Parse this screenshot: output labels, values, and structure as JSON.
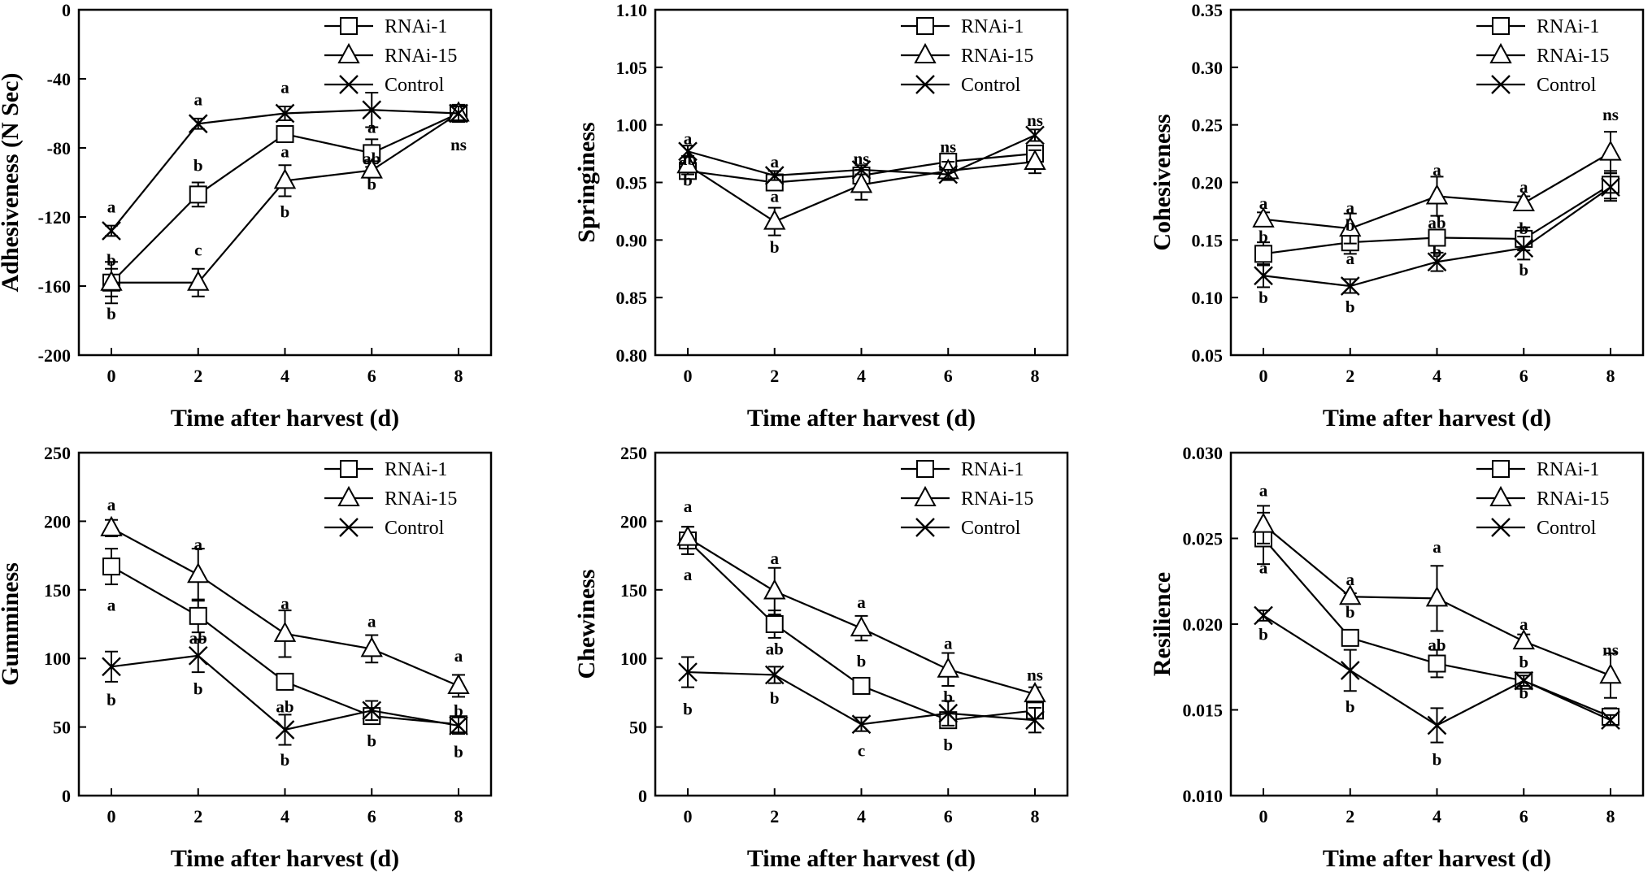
{
  "chart_data": [
    {
      "type": "line",
      "ylabel": "Adhesiveness (N Sec)",
      "xlabel": "Time after harvest (d)",
      "x": [
        0,
        2,
        4,
        6,
        8
      ],
      "ylim": [
        -200,
        0
      ],
      "yticks": [
        -200,
        -160,
        -120,
        -80,
        -40,
        0
      ],
      "ytick_labels": [
        "-200",
        "-160",
        "-120",
        "-80",
        "-40",
        "0"
      ],
      "legend": "top-right",
      "series": [
        {
          "name": "RNAi-1",
          "marker": "square",
          "values": [
            -158,
            -107,
            -72,
            -83,
            -60
          ],
          "errors": [
            12,
            7,
            4,
            8,
            5
          ]
        },
        {
          "name": "RNAi-15",
          "marker": "triangle",
          "values": [
            -158,
            -158,
            -99,
            -93,
            -60
          ],
          "errors": [
            8,
            8,
            9,
            4,
            4
          ]
        },
        {
          "name": "Control",
          "marker": "x",
          "values": [
            -128,
            -66,
            -60,
            -58,
            -60
          ],
          "errors": [
            3,
            3,
            4,
            10,
            4
          ]
        }
      ],
      "annotations": [
        {
          "x": 0,
          "y": -114,
          "text": "a"
        },
        {
          "x": 0,
          "y": -145,
          "text": "b"
        },
        {
          "x": 0,
          "y": -176,
          "text": "b"
        },
        {
          "x": 2,
          "y": -52,
          "text": "a"
        },
        {
          "x": 2,
          "y": -90,
          "text": "b"
        },
        {
          "x": 2,
          "y": -139,
          "text": "c"
        },
        {
          "x": 4,
          "y": -45,
          "text": "a"
        },
        {
          "x": 4,
          "y": -82,
          "text": "a"
        },
        {
          "x": 4,
          "y": -117,
          "text": "b"
        },
        {
          "x": 6,
          "y": -68,
          "text": "a"
        },
        {
          "x": 6,
          "y": -86,
          "text": "ab"
        },
        {
          "x": 6,
          "y": -101,
          "text": "b"
        },
        {
          "x": 8,
          "y": -78,
          "text": "ns"
        }
      ]
    },
    {
      "type": "line",
      "ylabel": "Springiness",
      "xlabel": "Time after harvest (d)",
      "x": [
        0,
        2,
        4,
        6,
        8
      ],
      "ylim": [
        0.8,
        1.1
      ],
      "yticks": [
        0.8,
        0.85,
        0.9,
        0.95,
        1.0,
        1.05,
        1.1
      ],
      "ytick_labels": [
        "0.80",
        "0.85",
        "0.90",
        "0.95",
        "1.00",
        "1.05",
        "1.10"
      ],
      "legend": "top-right",
      "series": [
        {
          "name": "RNAi-1",
          "marker": "square",
          "values": [
            0.96,
            0.95,
            0.956,
            0.968,
            0.975
          ],
          "errors": [
            0.004,
            0.005,
            0.005,
            0.006,
            0.007
          ]
        },
        {
          "name": "RNAi-15",
          "marker": "triangle",
          "values": [
            0.965,
            0.916,
            0.948,
            0.96,
            0.968
          ],
          "errors": [
            0.008,
            0.012,
            0.013,
            0.008,
            0.01
          ]
        },
        {
          "name": "Control",
          "marker": "x",
          "values": [
            0.977,
            0.956,
            0.961,
            0.957,
            0.991
          ],
          "errors": [
            0.005,
            0.004,
            0.004,
            0.004,
            0.005
          ]
        }
      ],
      "annotations": [
        {
          "x": 0,
          "y": 0.988,
          "text": "a"
        },
        {
          "x": 0,
          "y": 0.97,
          "text": "ab"
        },
        {
          "x": 0,
          "y": 0.952,
          "text": "b"
        },
        {
          "x": 2,
          "y": 0.968,
          "text": "a"
        },
        {
          "x": 2,
          "y": 0.938,
          "text": "a"
        },
        {
          "x": 2,
          "y": 0.894,
          "text": "b"
        },
        {
          "x": 4,
          "y": 0.971,
          "text": "ns"
        },
        {
          "x": 6,
          "y": 0.981,
          "text": "ns"
        },
        {
          "x": 8,
          "y": 1.004,
          "text": "ns"
        }
      ]
    },
    {
      "type": "line",
      "ylabel": "Cohesiveness",
      "xlabel": "Time after harvest (d)",
      "x": [
        0,
        2,
        4,
        6,
        8
      ],
      "ylim": [
        0.05,
        0.35
      ],
      "yticks": [
        0.05,
        0.1,
        0.15,
        0.2,
        0.25,
        0.3,
        0.35
      ],
      "ytick_labels": [
        "0.05",
        "0.10",
        "0.15",
        "0.20",
        "0.25",
        "0.30",
        "0.35"
      ],
      "legend": "top-right",
      "series": [
        {
          "name": "RNAi-1",
          "marker": "square",
          "values": [
            0.138,
            0.148,
            0.152,
            0.151,
            0.198
          ],
          "errors": [
            0.01,
            0.01,
            0.006,
            0.01,
            0.012
          ]
        },
        {
          "name": "RNAi-15",
          "marker": "triangle",
          "values": [
            0.168,
            0.16,
            0.188,
            0.182,
            0.226
          ],
          "errors": [
            0.006,
            0.013,
            0.017,
            0.006,
            0.018
          ]
        },
        {
          "name": "Control",
          "marker": "x",
          "values": [
            0.119,
            0.11,
            0.131,
            0.143,
            0.196
          ],
          "errors": [
            0.01,
            0.006,
            0.008,
            0.01,
            0.012
          ]
        }
      ],
      "annotations": [
        {
          "x": 0,
          "y": 0.182,
          "text": "a"
        },
        {
          "x": 0,
          "y": 0.153,
          "text": "b"
        },
        {
          "x": 0,
          "y": 0.1,
          "text": "b"
        },
        {
          "x": 2,
          "y": 0.178,
          "text": "a"
        },
        {
          "x": 2,
          "y": 0.163,
          "text": "b"
        },
        {
          "x": 2,
          "y": 0.134,
          "text": "a"
        },
        {
          "x": 2,
          "y": 0.092,
          "text": "b"
        },
        {
          "x": 4,
          "y": 0.211,
          "text": "a"
        },
        {
          "x": 4,
          "y": 0.165,
          "text": "ab"
        },
        {
          "x": 4,
          "y": 0.14,
          "text": "b"
        },
        {
          "x": 6,
          "y": 0.196,
          "text": "a"
        },
        {
          "x": 6,
          "y": 0.16,
          "text": "b"
        },
        {
          "x": 6,
          "y": 0.124,
          "text": "b"
        },
        {
          "x": 8,
          "y": 0.259,
          "text": "ns"
        }
      ]
    },
    {
      "type": "line",
      "ylabel": "Gumminess",
      "xlabel": "Time after harvest (d)",
      "x": [
        0,
        2,
        4,
        6,
        8
      ],
      "ylim": [
        0,
        250
      ],
      "yticks": [
        0,
        50,
        100,
        150,
        200,
        250
      ],
      "ytick_labels": [
        "0",
        "50",
        "100",
        "150",
        "200",
        "250"
      ],
      "legend": "top-right",
      "series": [
        {
          "name": "RNAi-1",
          "marker": "square",
          "values": [
            167,
            131,
            83,
            58,
            52
          ],
          "errors": [
            13,
            12,
            4,
            5,
            4
          ]
        },
        {
          "name": "RNAi-15",
          "marker": "triangle",
          "values": [
            195,
            161,
            118,
            107,
            80
          ],
          "errors": [
            6,
            19,
            17,
            10,
            8
          ]
        },
        {
          "name": "Control",
          "marker": "x",
          "values": [
            94,
            102,
            48,
            62,
            51
          ],
          "errors": [
            11,
            12,
            11,
            7,
            6
          ]
        }
      ],
      "annotations": [
        {
          "x": 0,
          "y": 212,
          "text": "a"
        },
        {
          "x": 0,
          "y": 139,
          "text": "a"
        },
        {
          "x": 0,
          "y": 70,
          "text": "b"
        },
        {
          "x": 2,
          "y": 183,
          "text": "a"
        },
        {
          "x": 2,
          "y": 115,
          "text": "ab"
        },
        {
          "x": 2,
          "y": 78,
          "text": "b"
        },
        {
          "x": 4,
          "y": 140,
          "text": "a"
        },
        {
          "x": 4,
          "y": 65,
          "text": "ab"
        },
        {
          "x": 4,
          "y": 26,
          "text": "b"
        },
        {
          "x": 6,
          "y": 127,
          "text": "a"
        },
        {
          "x": 6,
          "y": 40,
          "text": "b"
        },
        {
          "x": 8,
          "y": 102,
          "text": "a"
        },
        {
          "x": 8,
          "y": 62,
          "text": "b"
        },
        {
          "x": 8,
          "y": 32,
          "text": "b"
        }
      ]
    },
    {
      "type": "line",
      "ylabel": "Chewiness",
      "xlabel": "Time after harvest (d)",
      "x": [
        0,
        2,
        4,
        6,
        8
      ],
      "ylim": [
        0,
        250
      ],
      "yticks": [
        0,
        50,
        100,
        150,
        200,
        250
      ],
      "ytick_labels": [
        "0",
        "50",
        "100",
        "150",
        "200",
        "250"
      ],
      "legend": "top-right",
      "series": [
        {
          "name": "RNAi-1",
          "marker": "square",
          "values": [
            186,
            125,
            80,
            55,
            62
          ],
          "errors": [
            10,
            10,
            5,
            5,
            5
          ]
        },
        {
          "name": "RNAi-15",
          "marker": "triangle",
          "values": [
            188,
            149,
            122,
            92,
            74
          ],
          "errors": [
            8,
            17,
            9,
            12,
            5
          ]
        },
        {
          "name": "Control",
          "marker": "x",
          "values": [
            90,
            88,
            52,
            60,
            55
          ],
          "errors": [
            11,
            6,
            5,
            9,
            9
          ]
        }
      ],
      "annotations": [
        {
          "x": 0,
          "y": 211,
          "text": "a"
        },
        {
          "x": 0,
          "y": 161,
          "text": "a"
        },
        {
          "x": 0,
          "y": 63,
          "text": "b"
        },
        {
          "x": 2,
          "y": 173,
          "text": "a"
        },
        {
          "x": 2,
          "y": 107,
          "text": "ab"
        },
        {
          "x": 2,
          "y": 71,
          "text": "b"
        },
        {
          "x": 4,
          "y": 141,
          "text": "a"
        },
        {
          "x": 4,
          "y": 98,
          "text": "b"
        },
        {
          "x": 4,
          "y": 33,
          "text": "c"
        },
        {
          "x": 6,
          "y": 111,
          "text": "a"
        },
        {
          "x": 6,
          "y": 72,
          "text": "b"
        },
        {
          "x": 6,
          "y": 37,
          "text": "b"
        },
        {
          "x": 8,
          "y": 88,
          "text": "ns"
        }
      ]
    },
    {
      "type": "line",
      "ylabel": "Resilience",
      "xlabel": "Time after harvest (d)",
      "x": [
        0,
        2,
        4,
        6,
        8
      ],
      "ylim": [
        0.01,
        0.03
      ],
      "yticks": [
        0.01,
        0.015,
        0.02,
        0.025,
        0.03
      ],
      "ytick_labels": [
        "0.010",
        "0.015",
        "0.020",
        "0.025",
        "0.030"
      ],
      "legend": "top-right",
      "series": [
        {
          "name": "RNAi-1",
          "marker": "square",
          "values": [
            0.025,
            0.0192,
            0.0177,
            0.0167,
            0.0146
          ],
          "errors": [
            0.0015,
            0.0004,
            0.0008,
            0.0002,
            0.0005
          ]
        },
        {
          "name": "RNAi-15",
          "marker": "triangle",
          "values": [
            0.0258,
            0.0216,
            0.0215,
            0.019,
            0.017
          ],
          "errors": [
            0.0011,
            0.0002,
            0.0019,
            0.0004,
            0.0013
          ]
        },
        {
          "name": "Control",
          "marker": "x",
          "values": [
            0.0205,
            0.0173,
            0.0141,
            0.0167,
            0.0144
          ],
          "errors": [
            0.0003,
            0.0012,
            0.001,
            0.0003,
            0.0003
          ]
        }
      ],
      "annotations": [
        {
          "x": 0,
          "y": 0.0278,
          "text": "a"
        },
        {
          "x": 0,
          "y": 0.0233,
          "text": "a"
        },
        {
          "x": 0,
          "y": 0.0194,
          "text": "b"
        },
        {
          "x": 2,
          "y": 0.0226,
          "text": "a"
        },
        {
          "x": 2,
          "y": 0.0207,
          "text": "b"
        },
        {
          "x": 2,
          "y": 0.0152,
          "text": "b"
        },
        {
          "x": 4,
          "y": 0.0245,
          "text": "a"
        },
        {
          "x": 4,
          "y": 0.0188,
          "text": "ab"
        },
        {
          "x": 4,
          "y": 0.0121,
          "text": "b"
        },
        {
          "x": 6,
          "y": 0.02,
          "text": "a"
        },
        {
          "x": 6,
          "y": 0.0178,
          "text": "b"
        },
        {
          "x": 6,
          "y": 0.016,
          "text": "b"
        },
        {
          "x": 8,
          "y": 0.0185,
          "text": "ns"
        }
      ]
    }
  ]
}
